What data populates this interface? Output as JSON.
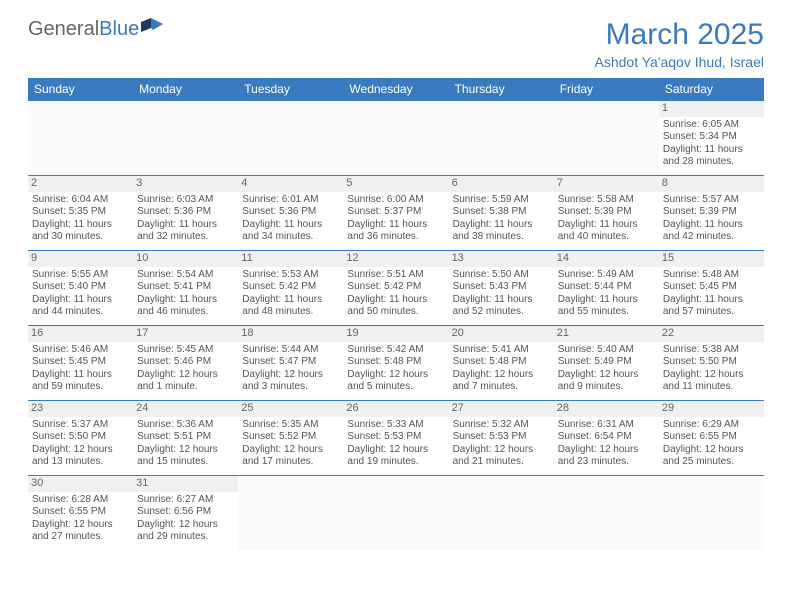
{
  "header": {
    "logo_general": "General",
    "logo_blue": "Blue",
    "title": "March 2025",
    "location": "Ashdot Ya'aqov Ihud, Israel"
  },
  "colors": {
    "accent": "#3a7bbf",
    "text": "#555555",
    "daynum_bg": "#f0f0f0",
    "empty_bg": "#fafafa"
  },
  "weekdays": [
    "Sunday",
    "Monday",
    "Tuesday",
    "Wednesday",
    "Thursday",
    "Friday",
    "Saturday"
  ],
  "weeks": [
    [
      null,
      null,
      null,
      null,
      null,
      null,
      {
        "d": "1",
        "sr": "Sunrise: 6:05 AM",
        "ss": "Sunset: 5:34 PM",
        "dl1": "Daylight: 11 hours",
        "dl2": "and 28 minutes."
      }
    ],
    [
      {
        "d": "2",
        "sr": "Sunrise: 6:04 AM",
        "ss": "Sunset: 5:35 PM",
        "dl1": "Daylight: 11 hours",
        "dl2": "and 30 minutes."
      },
      {
        "d": "3",
        "sr": "Sunrise: 6:03 AM",
        "ss": "Sunset: 5:36 PM",
        "dl1": "Daylight: 11 hours",
        "dl2": "and 32 minutes."
      },
      {
        "d": "4",
        "sr": "Sunrise: 6:01 AM",
        "ss": "Sunset: 5:36 PM",
        "dl1": "Daylight: 11 hours",
        "dl2": "and 34 minutes."
      },
      {
        "d": "5",
        "sr": "Sunrise: 6:00 AM",
        "ss": "Sunset: 5:37 PM",
        "dl1": "Daylight: 11 hours",
        "dl2": "and 36 minutes."
      },
      {
        "d": "6",
        "sr": "Sunrise: 5:59 AM",
        "ss": "Sunset: 5:38 PM",
        "dl1": "Daylight: 11 hours",
        "dl2": "and 38 minutes."
      },
      {
        "d": "7",
        "sr": "Sunrise: 5:58 AM",
        "ss": "Sunset: 5:39 PM",
        "dl1": "Daylight: 11 hours",
        "dl2": "and 40 minutes."
      },
      {
        "d": "8",
        "sr": "Sunrise: 5:57 AM",
        "ss": "Sunset: 5:39 PM",
        "dl1": "Daylight: 11 hours",
        "dl2": "and 42 minutes."
      }
    ],
    [
      {
        "d": "9",
        "sr": "Sunrise: 5:55 AM",
        "ss": "Sunset: 5:40 PM",
        "dl1": "Daylight: 11 hours",
        "dl2": "and 44 minutes."
      },
      {
        "d": "10",
        "sr": "Sunrise: 5:54 AM",
        "ss": "Sunset: 5:41 PM",
        "dl1": "Daylight: 11 hours",
        "dl2": "and 46 minutes."
      },
      {
        "d": "11",
        "sr": "Sunrise: 5:53 AM",
        "ss": "Sunset: 5:42 PM",
        "dl1": "Daylight: 11 hours",
        "dl2": "and 48 minutes."
      },
      {
        "d": "12",
        "sr": "Sunrise: 5:51 AM",
        "ss": "Sunset: 5:42 PM",
        "dl1": "Daylight: 11 hours",
        "dl2": "and 50 minutes."
      },
      {
        "d": "13",
        "sr": "Sunrise: 5:50 AM",
        "ss": "Sunset: 5:43 PM",
        "dl1": "Daylight: 11 hours",
        "dl2": "and 52 minutes."
      },
      {
        "d": "14",
        "sr": "Sunrise: 5:49 AM",
        "ss": "Sunset: 5:44 PM",
        "dl1": "Daylight: 11 hours",
        "dl2": "and 55 minutes."
      },
      {
        "d": "15",
        "sr": "Sunrise: 5:48 AM",
        "ss": "Sunset: 5:45 PM",
        "dl1": "Daylight: 11 hours",
        "dl2": "and 57 minutes."
      }
    ],
    [
      {
        "d": "16",
        "sr": "Sunrise: 5:46 AM",
        "ss": "Sunset: 5:45 PM",
        "dl1": "Daylight: 11 hours",
        "dl2": "and 59 minutes."
      },
      {
        "d": "17",
        "sr": "Sunrise: 5:45 AM",
        "ss": "Sunset: 5:46 PM",
        "dl1": "Daylight: 12 hours",
        "dl2": "and 1 minute."
      },
      {
        "d": "18",
        "sr": "Sunrise: 5:44 AM",
        "ss": "Sunset: 5:47 PM",
        "dl1": "Daylight: 12 hours",
        "dl2": "and 3 minutes."
      },
      {
        "d": "19",
        "sr": "Sunrise: 5:42 AM",
        "ss": "Sunset: 5:48 PM",
        "dl1": "Daylight: 12 hours",
        "dl2": "and 5 minutes."
      },
      {
        "d": "20",
        "sr": "Sunrise: 5:41 AM",
        "ss": "Sunset: 5:48 PM",
        "dl1": "Daylight: 12 hours",
        "dl2": "and 7 minutes."
      },
      {
        "d": "21",
        "sr": "Sunrise: 5:40 AM",
        "ss": "Sunset: 5:49 PM",
        "dl1": "Daylight: 12 hours",
        "dl2": "and 9 minutes."
      },
      {
        "d": "22",
        "sr": "Sunrise: 5:38 AM",
        "ss": "Sunset: 5:50 PM",
        "dl1": "Daylight: 12 hours",
        "dl2": "and 11 minutes."
      }
    ],
    [
      {
        "d": "23",
        "sr": "Sunrise: 5:37 AM",
        "ss": "Sunset: 5:50 PM",
        "dl1": "Daylight: 12 hours",
        "dl2": "and 13 minutes."
      },
      {
        "d": "24",
        "sr": "Sunrise: 5:36 AM",
        "ss": "Sunset: 5:51 PM",
        "dl1": "Daylight: 12 hours",
        "dl2": "and 15 minutes."
      },
      {
        "d": "25",
        "sr": "Sunrise: 5:35 AM",
        "ss": "Sunset: 5:52 PM",
        "dl1": "Daylight: 12 hours",
        "dl2": "and 17 minutes."
      },
      {
        "d": "26",
        "sr": "Sunrise: 5:33 AM",
        "ss": "Sunset: 5:53 PM",
        "dl1": "Daylight: 12 hours",
        "dl2": "and 19 minutes."
      },
      {
        "d": "27",
        "sr": "Sunrise: 5:32 AM",
        "ss": "Sunset: 5:53 PM",
        "dl1": "Daylight: 12 hours",
        "dl2": "and 21 minutes."
      },
      {
        "d": "28",
        "sr": "Sunrise: 6:31 AM",
        "ss": "Sunset: 6:54 PM",
        "dl1": "Daylight: 12 hours",
        "dl2": "and 23 minutes."
      },
      {
        "d": "29",
        "sr": "Sunrise: 6:29 AM",
        "ss": "Sunset: 6:55 PM",
        "dl1": "Daylight: 12 hours",
        "dl2": "and 25 minutes."
      }
    ],
    [
      {
        "d": "30",
        "sr": "Sunrise: 6:28 AM",
        "ss": "Sunset: 6:55 PM",
        "dl1": "Daylight: 12 hours",
        "dl2": "and 27 minutes."
      },
      {
        "d": "31",
        "sr": "Sunrise: 6:27 AM",
        "ss": "Sunset: 6:56 PM",
        "dl1": "Daylight: 12 hours",
        "dl2": "and 29 minutes."
      },
      null,
      null,
      null,
      null,
      null
    ]
  ]
}
